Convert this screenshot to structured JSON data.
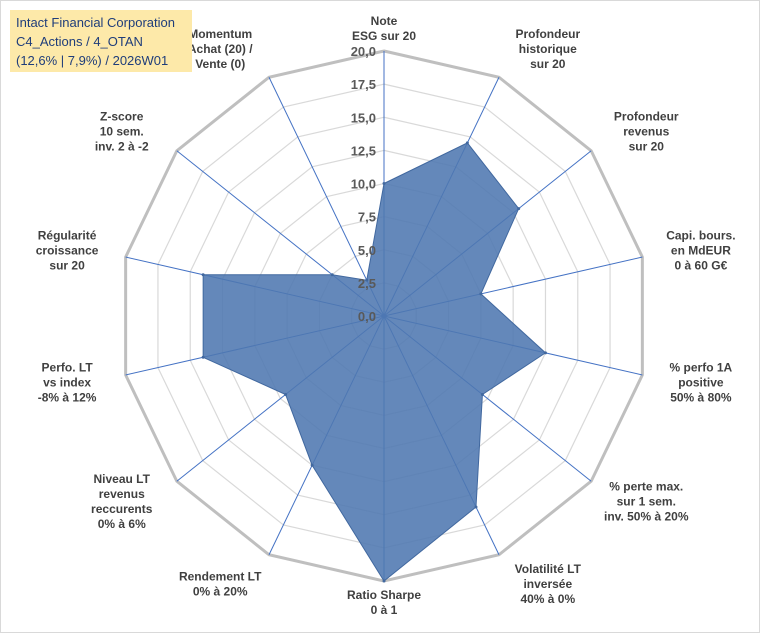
{
  "title": {
    "line1": "Intact Financial Corporation",
    "line2": "C4_Actions / 4_OTAN",
    "line3": "(12,6% | 7,9%) / 2026W01"
  },
  "chart_data": {
    "type": "radar",
    "rmin": 0,
    "rmax": 20,
    "step": 2.5,
    "tick_labels": [
      "0,0",
      "2,5",
      "5,0",
      "7,5",
      "10,0",
      "12,5",
      "15,0",
      "17,5",
      "20,0"
    ],
    "axes": [
      {
        "label": [
          "Note",
          "ESG sur 20"
        ],
        "value": 10.0
      },
      {
        "label": [
          "Profondeur",
          "historique",
          "sur 20"
        ],
        "value": 14.5
      },
      {
        "label": [
          "Profondeur",
          "revenus",
          "sur 20"
        ],
        "value": 13.0
      },
      {
        "label": [
          "Capi. bours.",
          "en MdEUR",
          "0 à 60 G€"
        ],
        "value": 7.5
      },
      {
        "label": [
          "% perfo 1A",
          "positive",
          "50% à 80%"
        ],
        "value": 12.5
      },
      {
        "label": [
          "% perte max.",
          "sur 1 sem.",
          "inv. 50% à 20%"
        ],
        "value": 9.5
      },
      {
        "label": [
          "Volatilité LT",
          "inversée",
          "40% à 0%"
        ],
        "value": 16.0
      },
      {
        "label": [
          "Ratio Sharpe",
          "0 à 1"
        ],
        "value": 20.0
      },
      {
        "label": [
          "Rendement LT",
          "0% à 20%"
        ],
        "value": 12.5
      },
      {
        "label": [
          "Niveau LT",
          "revenus",
          "reccurents",
          "0% à 6%"
        ],
        "value": 9.5
      },
      {
        "label": [
          "Perfo. LT",
          "vs index",
          "-8% à 12%"
        ],
        "value": 14.0
      },
      {
        "label": [
          "Régularité",
          "croissance",
          "sur 20"
        ],
        "value": 14.0
      },
      {
        "label": [
          "Z-score",
          "10 sem.",
          "inv. 2 à -2"
        ],
        "value": 5.0
      },
      {
        "label": [
          "Momentum",
          "Achat (20) /",
          "Vente (0)"
        ],
        "value": 3.0
      }
    ],
    "series": [
      {
        "name": "Intact Financial Corporation",
        "color": "#4f77b0"
      }
    ]
  }
}
